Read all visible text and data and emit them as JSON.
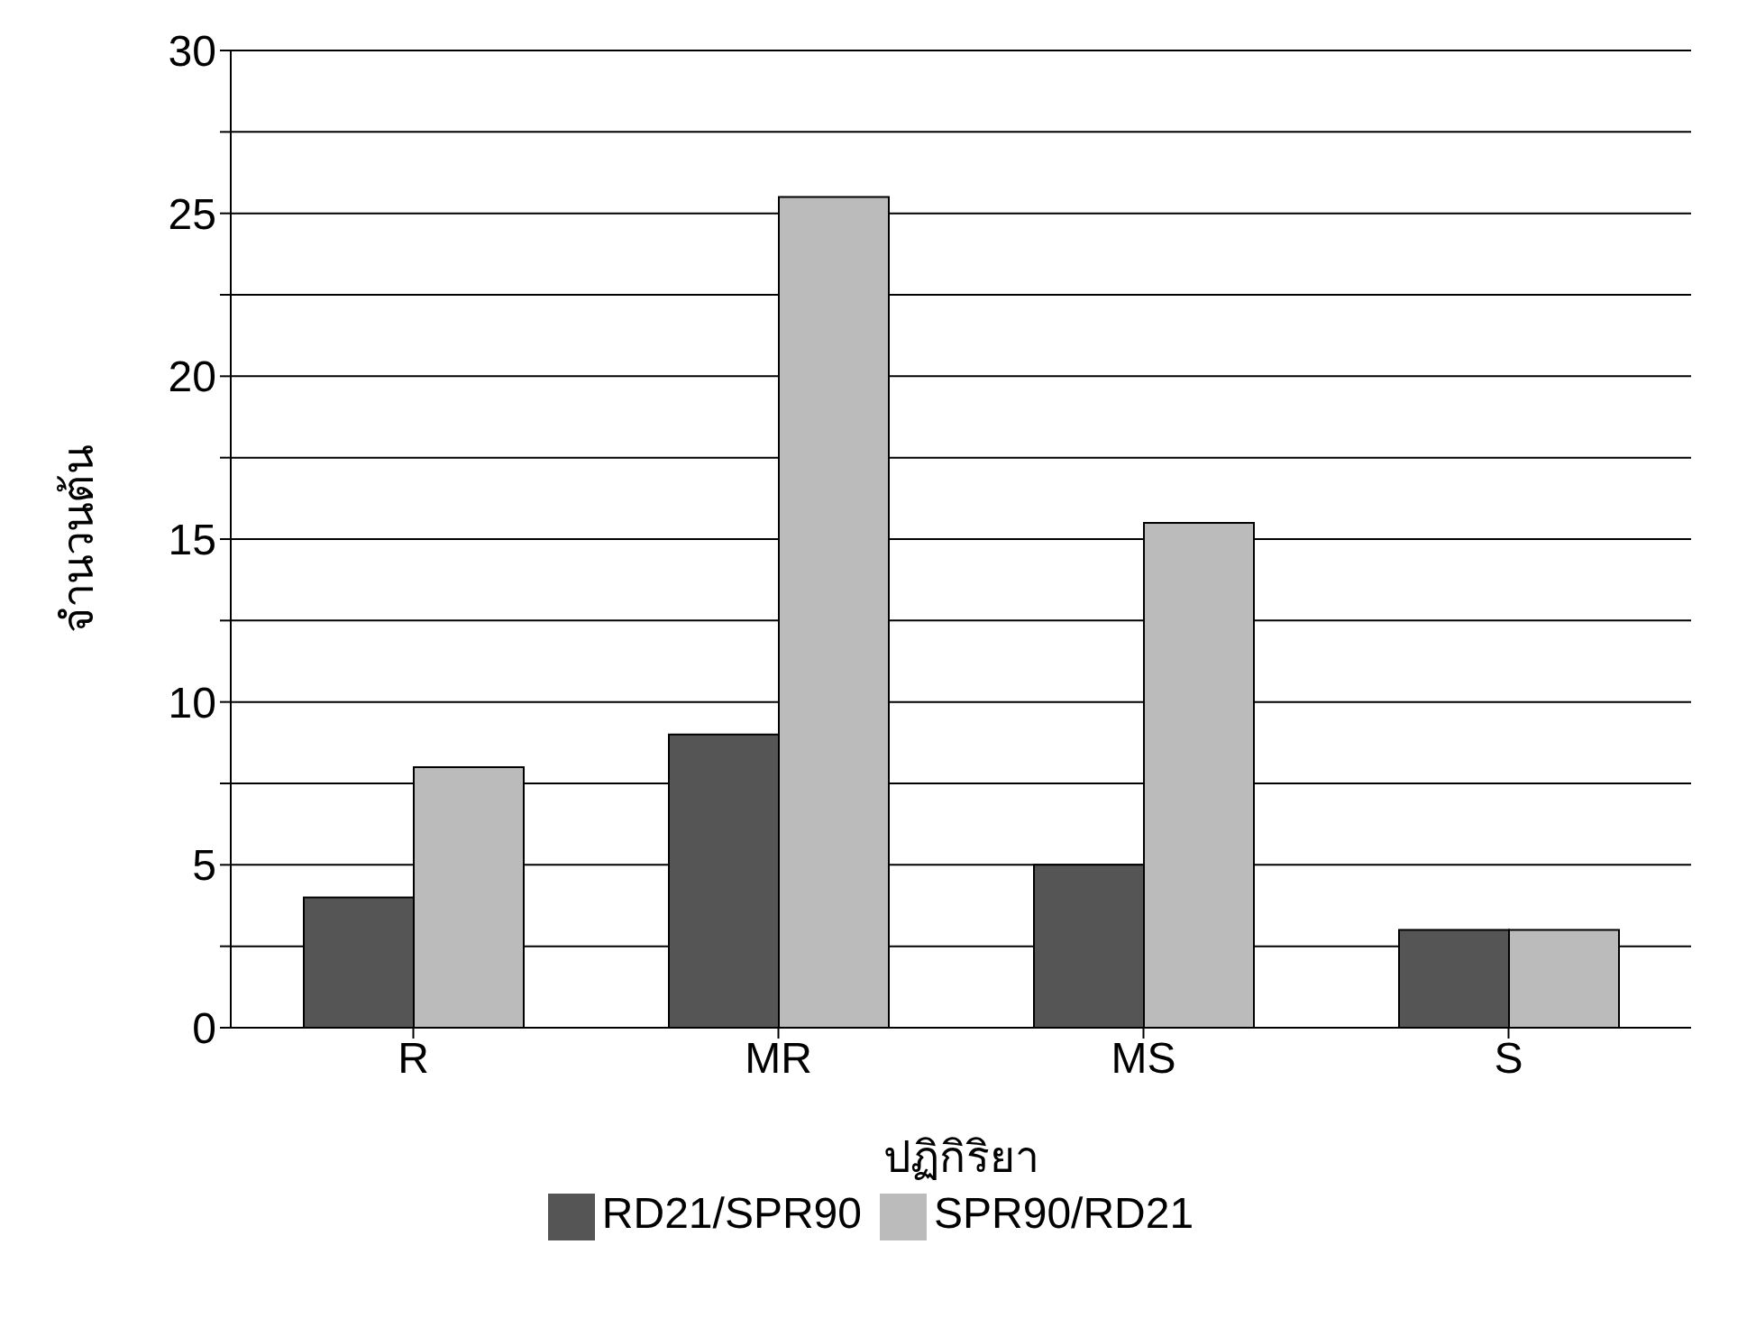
{
  "chart_data": {
    "type": "bar",
    "xlabel": "ปฏิกิริยา",
    "ylabel": "จำนวนต้น",
    "categories": [
      "R",
      "MR",
      "MS",
      "S"
    ],
    "series": [
      {
        "name": "RD21/SPR90",
        "color": "#555555",
        "values": [
          4,
          9,
          5,
          3
        ]
      },
      {
        "name": "SPR90/RD21",
        "color": "#bbbbbb",
        "values": [
          8,
          25.5,
          15.5,
          3
        ]
      }
    ],
    "ylim": [
      0,
      30
    ],
    "yticks": [
      0,
      {
        "value": 2.5,
        "label": null
      },
      5,
      {
        "value": 7.5,
        "label": null
      },
      10,
      {
        "value": 12.5,
        "label": null
      },
      15,
      {
        "value": 17.5,
        "label": null
      },
      20,
      {
        "value": 22.5,
        "label": null
      },
      25,
      {
        "value": 27.5,
        "label": null
      },
      30
    ],
    "grid": "y",
    "legend": "bottom"
  }
}
